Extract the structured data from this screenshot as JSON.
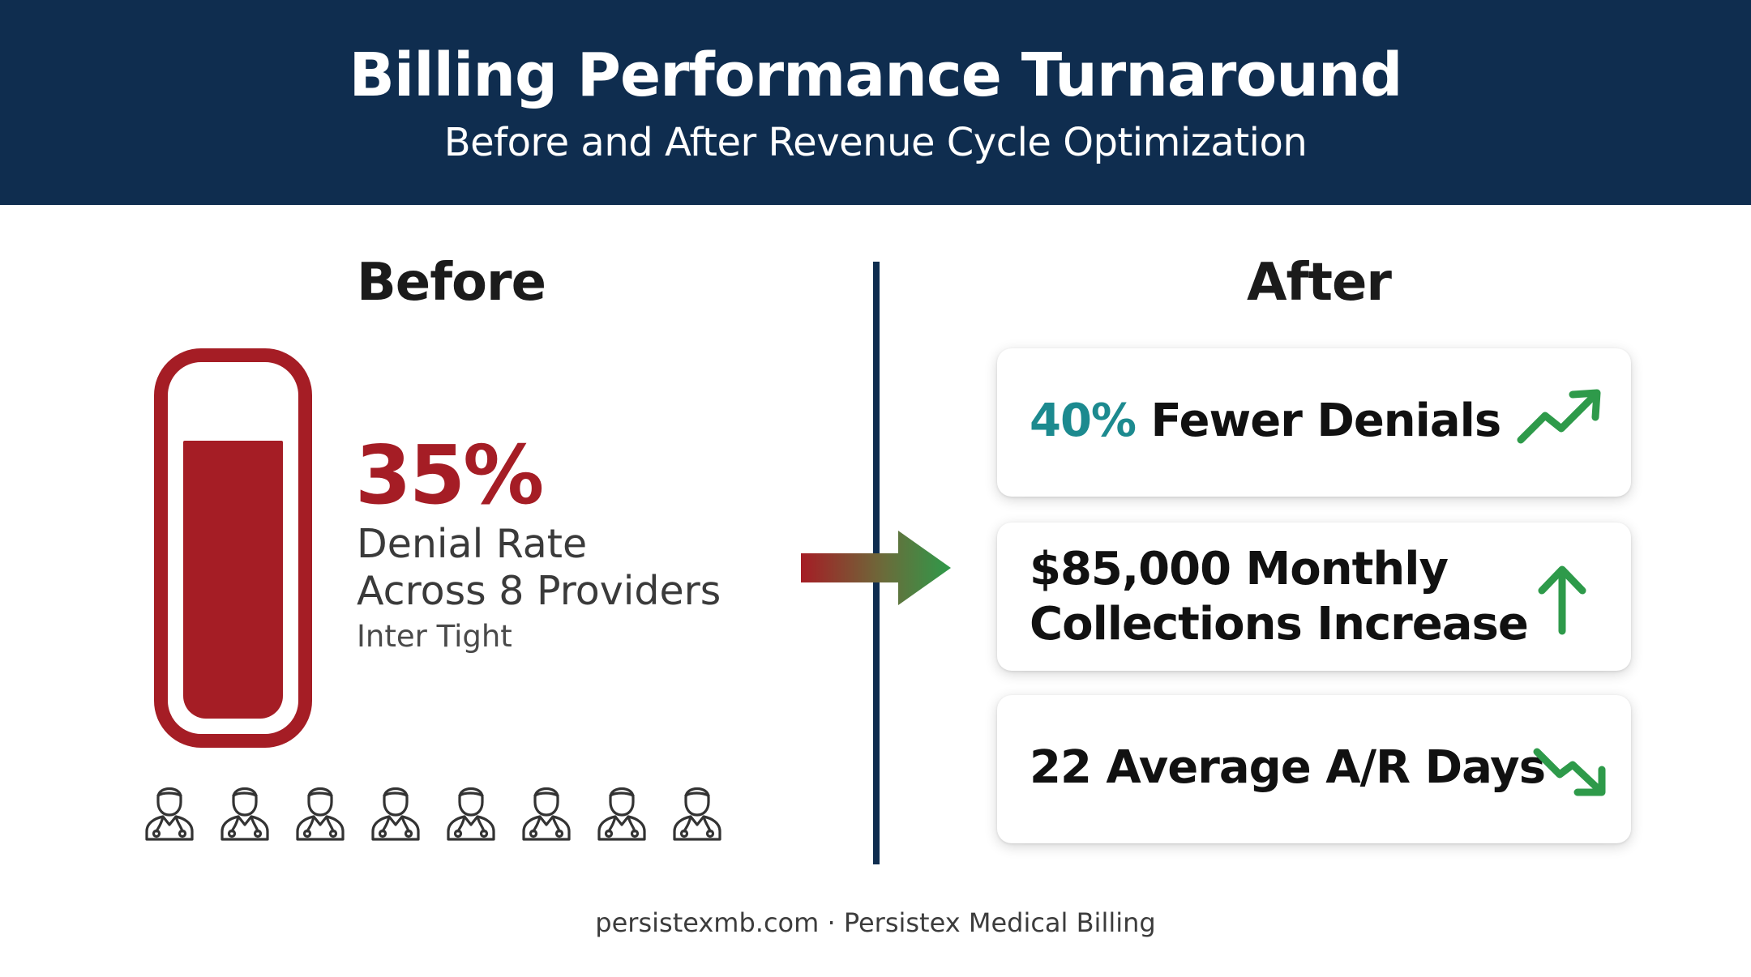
{
  "header": {
    "title": "Billing Performance Turnaround",
    "subtitle": "Before and After Revenue Cycle Optimization"
  },
  "before": {
    "heading": "Before",
    "denial_rate_value": "35%",
    "denial_rate_fraction": 0.35,
    "label_line1": "Denial Rate",
    "label_line2": "Across 8 Providers",
    "font_note": "Inter Tight",
    "provider_count": 8,
    "gauge_level": 0.94
  },
  "after": {
    "heading": "After",
    "cards": [
      {
        "highlight": "40%",
        "text": " Fewer Denials",
        "icon": "trend-up-icon"
      },
      {
        "line1": "$85,000 Monthly",
        "line2": "Collections Increase",
        "icon": "arrow-up-icon"
      },
      {
        "text": "22 Average A/R Days",
        "icon": "trend-down-icon"
      }
    ]
  },
  "footer": {
    "text": "persistexmb.com · Persistex Medical Billing"
  },
  "colors": {
    "header_bg": "#0f2d4f",
    "before_red": "#a51d25",
    "after_green": "#2e9a4a",
    "highlight_teal": "#1c8a8f"
  }
}
